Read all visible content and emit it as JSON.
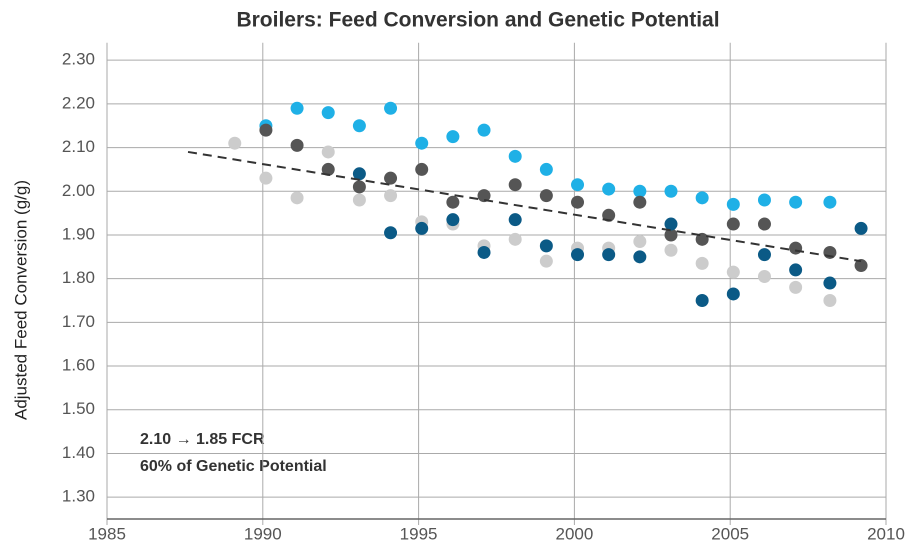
{
  "chart_data": {
    "type": "scatter",
    "title": "Broilers: Feed Conversion and Genetic Potential",
    "y_label": "Adjusted Feed Conversion (g/g)",
    "annotations": [
      "2.10 → 1.85 FCR",
      "60% of Genetic Potential"
    ],
    "xlim": [
      1985,
      2010
    ],
    "xticks": [
      1985,
      1990,
      1995,
      2000,
      2005,
      2010
    ],
    "ylim": [
      1.25,
      2.34
    ],
    "yticks": [
      {
        "value": 1.3,
        "label": "1.30"
      },
      {
        "value": 1.4,
        "label": "1.40"
      },
      {
        "value": 1.5,
        "label": "1.50"
      },
      {
        "value": 1.6,
        "label": "1.60"
      },
      {
        "value": 1.7,
        "label": "1.70"
      },
      {
        "value": 1.8,
        "label": "1.80"
      },
      {
        "value": 1.9,
        "label": "1.90"
      },
      {
        "value": 2.0,
        "label": "2.00"
      },
      {
        "value": 2.1,
        "label": "2.10"
      },
      {
        "value": 2.2,
        "label": "2.20"
      },
      {
        "value": 2.3,
        "label": "2.30"
      }
    ],
    "grid": true,
    "series": [
      {
        "color": "#1fb0e6",
        "x": [
          1990.1,
          1991.1,
          1992.1,
          1993.1,
          1994.1,
          1995.1,
          1996.1,
          1997.1,
          1998.1,
          1999.1,
          2000.1,
          2001.1,
          2002.1,
          2003.1,
          2004.1,
          2005.1,
          2006.1,
          2007.1,
          2008.2
        ],
        "values": [
          2.15,
          2.19,
          2.18,
          2.15,
          2.19,
          2.11,
          2.125,
          2.14,
          2.08,
          2.05,
          2.015,
          2.005,
          2.0,
          2.0,
          1.985,
          1.97,
          1.98,
          1.975,
          1.975
        ]
      },
      {
        "color": "#cccccc",
        "x": [
          1989.1,
          1990.1,
          1991.1,
          1992.1,
          1993.1,
          1994.1,
          1995.1,
          1996.1,
          1997.1,
          1998.1,
          1999.1,
          2000.1,
          2001.1,
          2002.1,
          2003.1,
          2004.1,
          2005.1,
          2006.1,
          2007.1,
          2008.2
        ],
        "values": [
          2.11,
          2.03,
          1.985,
          2.09,
          1.98,
          1.99,
          1.93,
          1.925,
          1.875,
          1.89,
          1.84,
          1.87,
          1.87,
          1.885,
          1.865,
          1.835,
          1.815,
          1.805,
          1.78,
          1.75
        ]
      },
      {
        "color": "#555555",
        "x": [
          1990.1,
          1991.1,
          1992.1,
          1993.1,
          1994.1,
          1995.1,
          1996.1,
          1997.1,
          1998.1,
          1999.1,
          2000.1,
          2001.1,
          2002.1,
          2003.1,
          2004.1,
          2005.1,
          2006.1,
          2007.1,
          2008.2,
          2009.2
        ],
        "values": [
          2.14,
          2.105,
          2.05,
          2.01,
          2.03,
          2.05,
          1.975,
          1.99,
          2.015,
          1.99,
          1.975,
          1.945,
          1.975,
          1.9,
          1.89,
          1.925,
          1.925,
          1.87,
          1.86,
          1.83
        ]
      },
      {
        "color": "#0b5a86",
        "x": [
          1993.1,
          1994.1,
          1995.1,
          1996.1,
          1997.1,
          1998.1,
          1999.1,
          2000.1,
          2001.1,
          2002.1,
          2003.1,
          2004.1,
          2005.1,
          2006.1,
          2007.1,
          2008.2,
          2009.2
        ],
        "values": [
          2.04,
          1.905,
          1.915,
          1.935,
          1.86,
          1.935,
          1.875,
          1.855,
          1.855,
          1.85,
          1.925,
          1.75,
          1.765,
          1.855,
          1.82,
          1.79,
          1.915
        ]
      }
    ],
    "trend": {
      "color": "#333333",
      "x": [
        1987.6,
        2009.2
      ],
      "values": [
        2.09,
        1.84
      ]
    }
  }
}
